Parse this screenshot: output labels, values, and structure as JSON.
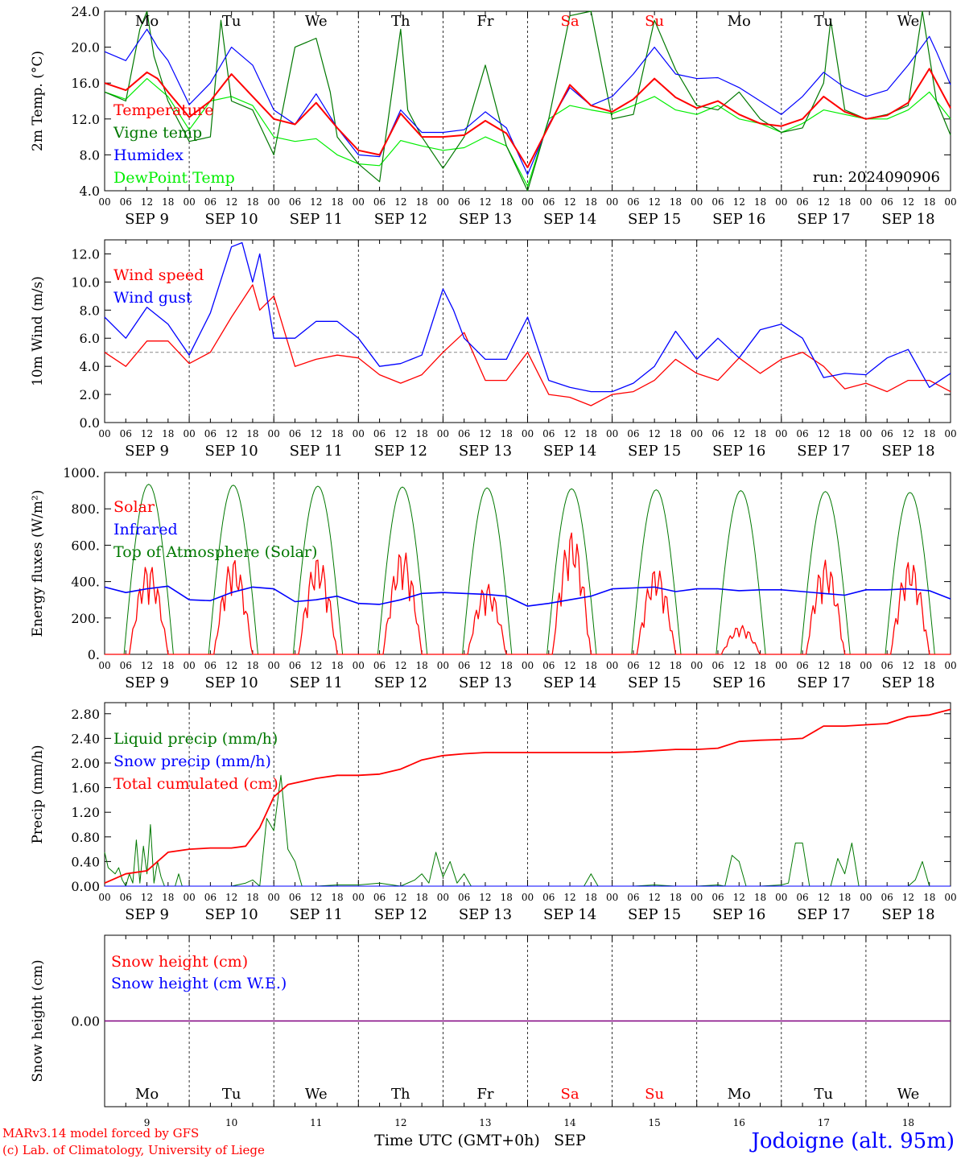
{
  "footer": {
    "model_line": "MARv3.14 model forced by GFS",
    "credit_line": "(c) Lab. of Climatology, University of Liege",
    "location": "Jodoigne (alt. 95m)",
    "xlabel": "Time UTC (GMT+0h)",
    "month": "SEP"
  },
  "run_label": "run: 2024090906",
  "axis": {
    "hours": [
      "00",
      "06",
      "12",
      "18"
    ],
    "days": [
      9,
      10,
      11,
      12,
      13,
      14,
      15,
      16,
      17,
      18
    ],
    "day_labels": [
      "SEP  9",
      "SEP 10",
      "SEP 11",
      "SEP 12",
      "SEP 13",
      "SEP 14",
      "SEP 15",
      "SEP 16",
      "SEP 17",
      "SEP 18"
    ],
    "weekdays": [
      "Mo",
      "Tu",
      "We",
      "Th",
      "Fr",
      "Sa",
      "Su",
      "Mo",
      "Tu",
      "We"
    ],
    "weekend_flags": [
      false,
      false,
      false,
      false,
      false,
      true,
      true,
      false,
      false,
      false
    ]
  },
  "colors": {
    "red": "#ff0000",
    "green": "#007800",
    "blue": "#0000ff",
    "lightgreen": "#00ee00",
    "weekend": "#ff0000",
    "axis": "#000000",
    "purple": "#800080"
  },
  "chart_data": [
    {
      "type": "line",
      "id": "temperature",
      "ylabel": "2m Temp. (°C)",
      "ylim": [
        4,
        24
      ],
      "yticks": [
        "4.0",
        "8.0",
        "12.0",
        "16.0",
        "20.0",
        "24.0"
      ],
      "x_unit": "hours since 2024-09-09 00 UTC",
      "series": [
        {
          "name": "Temperature",
          "color": "#ff0000",
          "x": [
            0,
            6,
            12,
            15,
            18,
            24,
            30,
            36,
            42,
            48,
            54,
            60,
            66,
            72,
            78,
            84,
            90,
            96,
            102,
            108,
            114,
            120,
            126,
            132,
            138,
            144,
            150,
            156,
            162,
            168,
            174,
            180,
            186,
            192,
            198,
            204,
            210,
            216,
            222,
            228,
            234,
            240
          ],
          "y": [
            16,
            15.2,
            17.2,
            16.5,
            15,
            12.2,
            14,
            17,
            14.5,
            12,
            11.4,
            13.8,
            11,
            8.5,
            8,
            12.6,
            10,
            10,
            10.2,
            11.8,
            10.4,
            6.6,
            11.2,
            15.8,
            13.5,
            12.8,
            14.2,
            16.5,
            14.4,
            13.2,
            14,
            12.5,
            11.5,
            11.2,
            12,
            14.5,
            12.8,
            12,
            12.4,
            13.8,
            17.6,
            13.2
          ]
        },
        {
          "name": "Vigne temp",
          "color": "#007800",
          "x": [
            0,
            6,
            10,
            12,
            14,
            18,
            24,
            30,
            33,
            36,
            42,
            48,
            54,
            60,
            64,
            66,
            72,
            78,
            84,
            86,
            90,
            96,
            102,
            108,
            110,
            114,
            120,
            126,
            132,
            138,
            144,
            150,
            156,
            162,
            168,
            174,
            180,
            186,
            192,
            198,
            204,
            206,
            210,
            216,
            222,
            228,
            232,
            236,
            240
          ],
          "y": [
            15,
            14,
            22,
            24,
            19,
            14,
            9.5,
            10,
            23,
            14,
            13,
            8,
            20,
            21,
            15,
            10,
            7,
            5,
            22,
            13,
            10,
            6.5,
            10,
            18,
            15,
            9,
            4,
            12,
            23.5,
            24,
            12,
            12.5,
            23,
            17.5,
            13.5,
            13,
            15,
            12,
            10.5,
            11,
            16,
            23,
            13,
            12,
            12.5,
            13.5,
            24,
            14,
            10.2
          ]
        },
        {
          "name": "Humidex",
          "color": "#0000ff",
          "x": [
            0,
            6,
            12,
            15,
            18,
            24,
            30,
            36,
            42,
            48,
            54,
            60,
            66,
            72,
            78,
            84,
            90,
            96,
            102,
            108,
            114,
            120,
            126,
            132,
            138,
            144,
            150,
            156,
            162,
            168,
            174,
            180,
            186,
            192,
            198,
            204,
            210,
            216,
            222,
            228,
            234,
            236,
            240
          ],
          "y": [
            19.5,
            18.5,
            22,
            20,
            18.5,
            13.6,
            16,
            20,
            18,
            13,
            11.4,
            14.8,
            11,
            8,
            7.8,
            13,
            10.5,
            10.5,
            10.8,
            12.8,
            11,
            5.8,
            11.4,
            15.5,
            13.5,
            14.5,
            17,
            20,
            17,
            16.5,
            16.6,
            15.5,
            14,
            12.5,
            14.5,
            17.2,
            15.5,
            14.5,
            15.2,
            18,
            21.2,
            19.5,
            15.8
          ]
        },
        {
          "name": "DewPoint Temp",
          "color": "#00ee00",
          "x": [
            0,
            6,
            12,
            15,
            18,
            24,
            30,
            36,
            42,
            48,
            54,
            60,
            66,
            72,
            78,
            84,
            90,
            96,
            102,
            108,
            114,
            120,
            126,
            132,
            138,
            144,
            150,
            156,
            162,
            168,
            174,
            180,
            186,
            192,
            198,
            204,
            210,
            216,
            222,
            228,
            234,
            240
          ],
          "y": [
            15,
            14.2,
            16.5,
            15.5,
            14.5,
            10.8,
            14,
            14.5,
            13.5,
            10,
            9.5,
            9.8,
            8,
            7,
            6.8,
            9.6,
            9,
            8.5,
            8.8,
            10,
            9,
            4.5,
            12,
            13.5,
            13,
            12.6,
            13.5,
            14.5,
            13,
            12.5,
            13.5,
            12,
            11.5,
            10.5,
            11.5,
            13,
            12.5,
            12,
            12,
            13,
            15,
            12
          ]
        }
      ],
      "legend": [
        "Temperature",
        "Vigne temp",
        "Humidex",
        "DewPoint Temp"
      ]
    },
    {
      "type": "line",
      "id": "wind",
      "ylabel": "10m Wind (m/s)",
      "ylim": [
        0,
        13
      ],
      "yticks": [
        "0.0",
        "2.0",
        "4.0",
        "6.0",
        "8.0",
        "10.0",
        "12.0"
      ],
      "reference_line": 5,
      "series": [
        {
          "name": "Wind speed",
          "color": "#ff0000",
          "x": [
            0,
            6,
            12,
            18,
            24,
            30,
            36,
            42,
            44,
            48,
            54,
            60,
            66,
            72,
            78,
            84,
            90,
            96,
            102,
            108,
            114,
            120,
            126,
            132,
            138,
            144,
            150,
            156,
            162,
            168,
            174,
            180,
            186,
            192,
            198,
            204,
            210,
            216,
            222,
            228,
            234,
            240
          ],
          "y": [
            5,
            4,
            5.8,
            5.8,
            4.2,
            5,
            7.5,
            9.8,
            8,
            9,
            4,
            4.5,
            4.8,
            4.6,
            3.4,
            2.8,
            3.4,
            5,
            6.4,
            3,
            3,
            5,
            2,
            1.8,
            1.2,
            2,
            2.2,
            3,
            4.5,
            3.5,
            3,
            4.6,
            3.5,
            4.5,
            5,
            4,
            2.4,
            2.8,
            2.2,
            3,
            3,
            2.2
          ]
        },
        {
          "name": "Wind gust",
          "color": "#0000ff",
          "x": [
            0,
            6,
            12,
            18,
            24,
            30,
            36,
            39,
            42,
            44,
            48,
            54,
            60,
            66,
            72,
            78,
            84,
            90,
            96,
            99,
            102,
            108,
            114,
            120,
            126,
            132,
            138,
            144,
            150,
            156,
            162,
            168,
            174,
            180,
            186,
            192,
            198,
            204,
            210,
            216,
            222,
            228,
            234,
            240
          ],
          "y": [
            7.5,
            6,
            8.2,
            7,
            4.8,
            7.8,
            12.5,
            12.8,
            10,
            12,
            6,
            6,
            7.2,
            7.2,
            6,
            4,
            4.2,
            4.8,
            9.5,
            8,
            6,
            4.5,
            4.5,
            7.5,
            3,
            2.5,
            2.2,
            2.2,
            2.8,
            4,
            6.5,
            4.5,
            6,
            4.6,
            6.6,
            7,
            6,
            3.2,
            3.5,
            3.4,
            4.6,
            5.2,
            2.5,
            3.5
          ]
        }
      ],
      "legend": [
        "Wind speed",
        "Wind gust"
      ]
    },
    {
      "type": "line",
      "id": "energy",
      "ylabel": "Energy fluxes (W/m²)",
      "ylim": [
        0,
        1000
      ],
      "yticks": [
        "0.",
        "200.",
        "400.",
        "600.",
        "800.",
        "1000."
      ],
      "series": [
        {
          "name": "Solar",
          "color": "#ff0000",
          "day_peaks": [
            500,
            530,
            540,
            580,
            390,
            680,
            480,
            160,
            520,
            520
          ]
        },
        {
          "name": "Infrared",
          "color": "#0000ff",
          "x": [
            0,
            6,
            12,
            18,
            24,
            30,
            36,
            42,
            48,
            54,
            60,
            66,
            72,
            78,
            84,
            90,
            96,
            102,
            108,
            114,
            120,
            126,
            132,
            138,
            144,
            150,
            156,
            162,
            168,
            174,
            180,
            186,
            192,
            198,
            204,
            210,
            216,
            222,
            228,
            234,
            240
          ],
          "y": [
            370,
            340,
            360,
            375,
            300,
            295,
            340,
            370,
            360,
            290,
            300,
            320,
            280,
            275,
            300,
            335,
            340,
            335,
            330,
            320,
            265,
            280,
            300,
            320,
            360,
            365,
            370,
            345,
            360,
            360,
            350,
            355,
            355,
            345,
            335,
            325,
            355,
            355,
            360,
            350,
            305
          ]
        },
        {
          "name": "Top of Atmosphere (Solar)",
          "color": "#007800",
          "day_peaks": [
            935,
            930,
            925,
            920,
            915,
            910,
            905,
            900,
            895,
            890
          ]
        }
      ],
      "legend": [
        "Solar",
        "Infrared",
        "Top of Atmosphere (Solar)"
      ]
    },
    {
      "type": "line",
      "id": "precip",
      "ylabel": "Precip (mm/h)",
      "ylim": [
        0,
        3
      ],
      "yticks": [
        "0.00",
        "0.40",
        "0.80",
        "1.20",
        "1.60",
        "2.00",
        "2.40",
        "2.80"
      ],
      "series": [
        {
          "name": "Liquid precip (mm/h)",
          "color": "#007800",
          "x": [
            0,
            1,
            2,
            3,
            4,
            5,
            6,
            7,
            8,
            9,
            10,
            11,
            12,
            13,
            14,
            15,
            16,
            17,
            18,
            19,
            20,
            21,
            22,
            23,
            24,
            30,
            36,
            40,
            42,
            44,
            46,
            48,
            50,
            52,
            54,
            56,
            60,
            66,
            72,
            78,
            84,
            88,
            90,
            92,
            94,
            96,
            98,
            100,
            102,
            104,
            108,
            114,
            120,
            126,
            132,
            136,
            138,
            140,
            144,
            150,
            156,
            162,
            168,
            174,
            176,
            178,
            180,
            182,
            186,
            192,
            194,
            196,
            198,
            200,
            204,
            206,
            208,
            210,
            212,
            214,
            216,
            222,
            228,
            230,
            232,
            234,
            236,
            240
          ],
          "y": [
            0.55,
            0.3,
            0.25,
            0.2,
            0.3,
            0.1,
            0,
            0.2,
            0.05,
            0.75,
            0.05,
            0.65,
            0.2,
            1,
            0.05,
            0.4,
            0.15,
            0,
            0,
            0,
            0,
            0.2,
            0,
            0,
            0,
            0,
            0,
            0.05,
            0.1,
            0,
            1.1,
            0.9,
            1.8,
            0.6,
            0.4,
            0,
            0,
            0.02,
            0.02,
            0.05,
            0,
            0.1,
            0.2,
            0.05,
            0.55,
            0.15,
            0.4,
            0.05,
            0.2,
            0,
            0,
            0,
            0,
            0,
            0,
            0,
            0.2,
            0,
            0,
            0,
            0.02,
            0,
            0,
            0.02,
            0,
            0.5,
            0.4,
            0,
            0,
            0.02,
            0.05,
            0.7,
            0.7,
            0,
            0,
            0,
            0.45,
            0.2,
            0.7,
            0,
            0,
            0,
            0,
            0.1,
            0.4,
            0,
            0,
            0
          ]
        },
        {
          "name": "Snow precip (mm/h)",
          "color": "#0000ff",
          "x": [
            0,
            240
          ],
          "y": [
            0,
            0
          ]
        },
        {
          "name": "Total cumulated (cm)",
          "color": "#ff0000",
          "x": [
            0,
            6,
            12,
            18,
            24,
            30,
            36,
            40,
            44,
            48,
            52,
            60,
            66,
            72,
            78,
            84,
            90,
            96,
            102,
            108,
            114,
            120,
            126,
            132,
            138,
            144,
            150,
            156,
            162,
            168,
            174,
            180,
            186,
            192,
            198,
            204,
            210,
            216,
            222,
            228,
            234,
            240
          ],
          "y": [
            0.05,
            0.2,
            0.25,
            0.55,
            0.6,
            0.62,
            0.62,
            0.65,
            0.95,
            1.45,
            1.65,
            1.75,
            1.8,
            1.8,
            1.82,
            1.9,
            2.05,
            2.12,
            2.15,
            2.17,
            2.17,
            2.17,
            2.17,
            2.17,
            2.17,
            2.17,
            2.18,
            2.2,
            2.22,
            2.22,
            2.24,
            2.35,
            2.37,
            2.38,
            2.4,
            2.6,
            2.6,
            2.62,
            2.64,
            2.75,
            2.78,
            2.87
          ]
        }
      ],
      "legend": [
        "Liquid precip (mm/h)",
        "Snow precip (mm/h)",
        "Total cumulated (cm)"
      ]
    },
    {
      "type": "line",
      "id": "snow",
      "ylabel": "Snow height (cm)",
      "yticks": [
        "0.00"
      ],
      "series": [
        {
          "name": "Snow height (cm)",
          "color": "#ff0000",
          "x": [
            0,
            240
          ],
          "y": [
            0,
            0
          ]
        },
        {
          "name": "Snow height (cm W.E.)",
          "color": "#0000ff",
          "x": [
            0,
            240
          ],
          "y": [
            0,
            0
          ]
        }
      ],
      "legend": [
        "Snow height (cm)",
        "Snow height (cm W.E.)"
      ]
    }
  ]
}
